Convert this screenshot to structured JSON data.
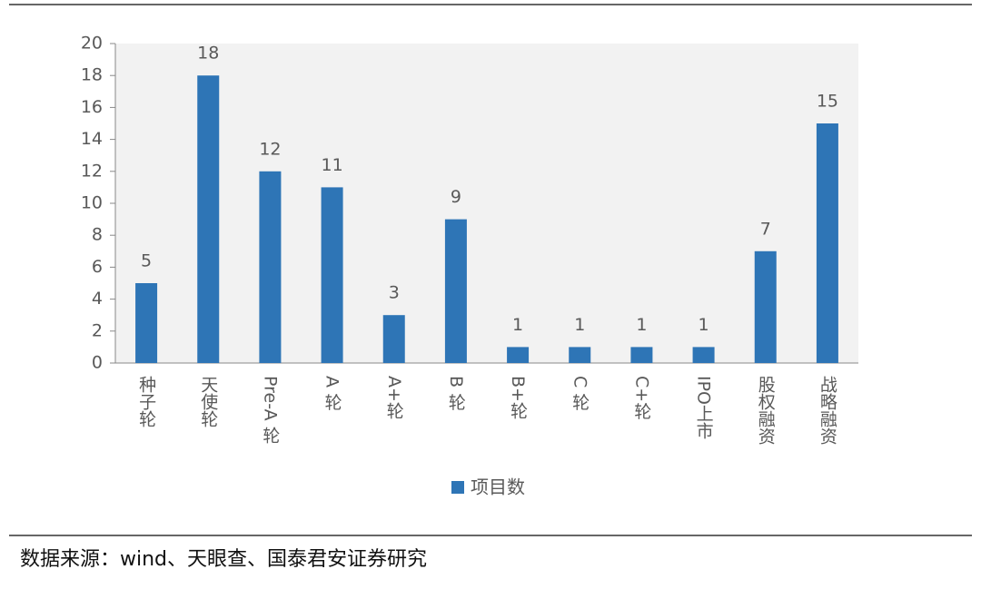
{
  "chart_data": {
    "type": "bar",
    "categories": [
      "种子轮",
      "天使轮",
      "Pre-A 轮",
      "A 轮",
      "A+轮",
      "B 轮",
      "B+轮",
      "C 轮",
      "C+轮",
      "IPO上市",
      "股权融资",
      "战略融资"
    ],
    "series": [
      {
        "name": "项目数",
        "color": "#2e75b6",
        "values": [
          5,
          18,
          12,
          11,
          3,
          9,
          1,
          1,
          1,
          1,
          7,
          15
        ]
      }
    ],
    "ylim": [
      0,
      20
    ],
    "yticks": [
      0,
      2,
      4,
      6,
      8,
      10,
      12,
      14,
      16,
      18,
      20
    ],
    "legend": "bottom",
    "source": "数据来源：wind、天眼查、国泰君安证券研究"
  }
}
